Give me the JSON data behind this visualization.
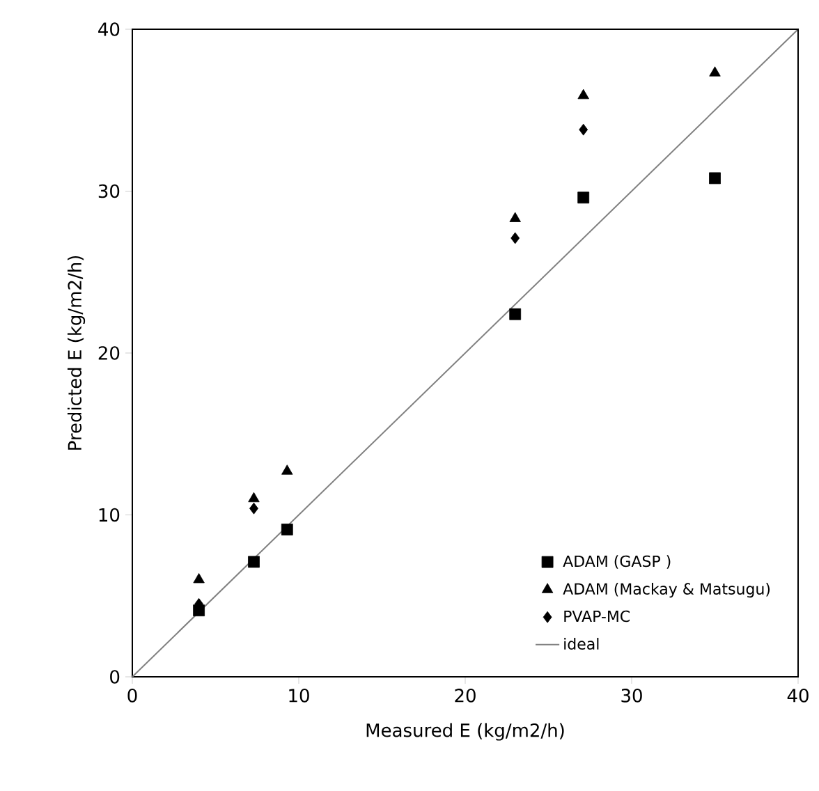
{
  "chart_data": {
    "type": "scatter",
    "xlabel": "Measured  E (kg/m2/h)",
    "ylabel": "Predicted E (kg/m2/h)",
    "xlim": [
      0,
      40
    ],
    "ylim": [
      0,
      40
    ],
    "xticks": [
      0,
      10,
      20,
      30,
      40
    ],
    "yticks": [
      0,
      10,
      20,
      30,
      40
    ],
    "grid": false,
    "legend": "bottom right",
    "series": [
      {
        "name": "ADAM (GASP )",
        "color": "#000000",
        "marker": "square",
        "x": [
          4.0,
          7.3,
          9.3,
          23.0,
          27.1,
          35.0
        ],
        "values": [
          4.1,
          7.1,
          9.1,
          22.4,
          29.6,
          30.8
        ]
      },
      {
        "name": "ADAM (Mackay & Matsugu)",
        "color": "#000000",
        "marker": "triangle",
        "x": [
          4.0,
          7.3,
          9.3,
          23.0,
          27.1,
          35.0
        ],
        "values": [
          6.0,
          11.0,
          12.7,
          28.3,
          35.9,
          37.3
        ]
      },
      {
        "name": "PVAP-MC",
        "color": "#000000",
        "marker": "diamond",
        "x": [
          4.0,
          7.3,
          23.0,
          27.1
        ],
        "values": [
          4.5,
          10.4,
          27.1,
          33.8
        ]
      },
      {
        "name": "ideal",
        "type": "line",
        "color": "#808080",
        "marker": "none",
        "line_style": "solid",
        "x": [
          0,
          40
        ],
        "values": [
          0,
          40
        ]
      }
    ]
  }
}
